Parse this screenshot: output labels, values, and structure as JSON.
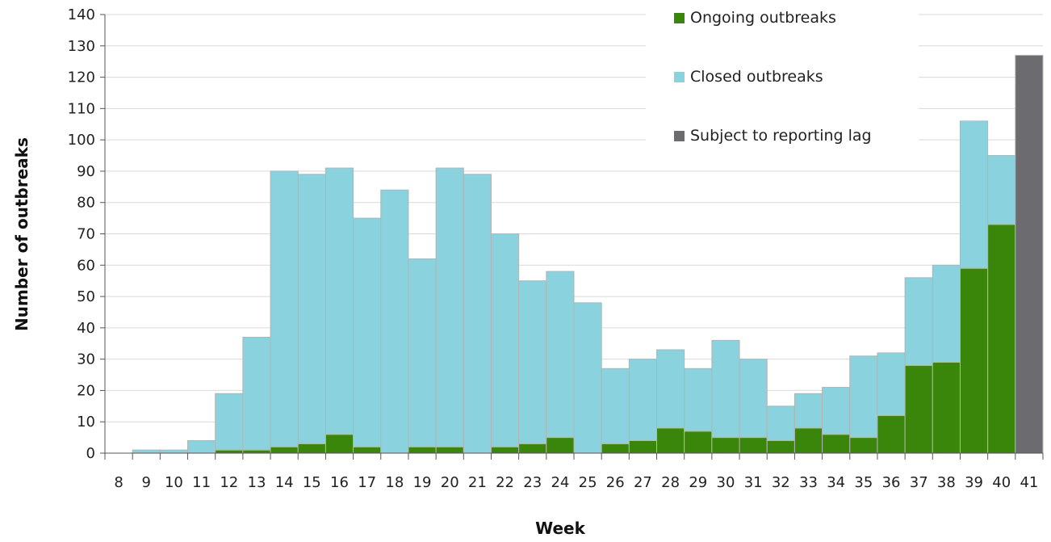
{
  "chart_data": {
    "type": "bar",
    "stacked": true,
    "title": "",
    "xlabel": "Week",
    "ylabel": "Number of outbreaks",
    "ylim": [
      0,
      140
    ],
    "yticks": [
      0,
      10,
      20,
      30,
      40,
      50,
      60,
      70,
      80,
      90,
      100,
      110,
      120,
      130,
      140
    ],
    "grid": "horizontal",
    "legend_position": "top-right",
    "categories": [
      "8",
      "9",
      "10",
      "11",
      "12",
      "13",
      "14",
      "15",
      "16",
      "17",
      "18",
      "19",
      "20",
      "21",
      "22",
      "23",
      "24",
      "25",
      "26",
      "27",
      "28",
      "29",
      "30",
      "31",
      "32",
      "33",
      "34",
      "35",
      "36",
      "37",
      "38",
      "39",
      "40",
      "41"
    ],
    "series": [
      {
        "name": "Ongoing outbreaks",
        "color": "#3a860a",
        "values": [
          0,
          0,
          0,
          0,
          1,
          1,
          2,
          3,
          6,
          2,
          0,
          2,
          2,
          0,
          2,
          3,
          5,
          0,
          3,
          4,
          8,
          7,
          5,
          5,
          4,
          8,
          6,
          5,
          12,
          28,
          29,
          59,
          73,
          0
        ]
      },
      {
        "name": "Closed outbreaks",
        "color": "#8ad3de",
        "values": [
          0,
          1,
          1,
          4,
          18,
          36,
          88,
          86,
          85,
          73,
          84,
          60,
          89,
          89,
          68,
          52,
          53,
          48,
          24,
          26,
          25,
          20,
          31,
          25,
          11,
          11,
          15,
          26,
          20,
          28,
          31,
          47,
          22,
          0
        ]
      },
      {
        "name": "Subject to reporting lag",
        "color": "#6b6b70",
        "values": [
          0,
          0,
          0,
          0,
          0,
          0,
          0,
          0,
          0,
          0,
          0,
          0,
          0,
          0,
          0,
          0,
          0,
          0,
          0,
          0,
          0,
          0,
          0,
          0,
          0,
          0,
          0,
          0,
          0,
          0,
          0,
          0,
          0,
          127
        ]
      }
    ]
  }
}
